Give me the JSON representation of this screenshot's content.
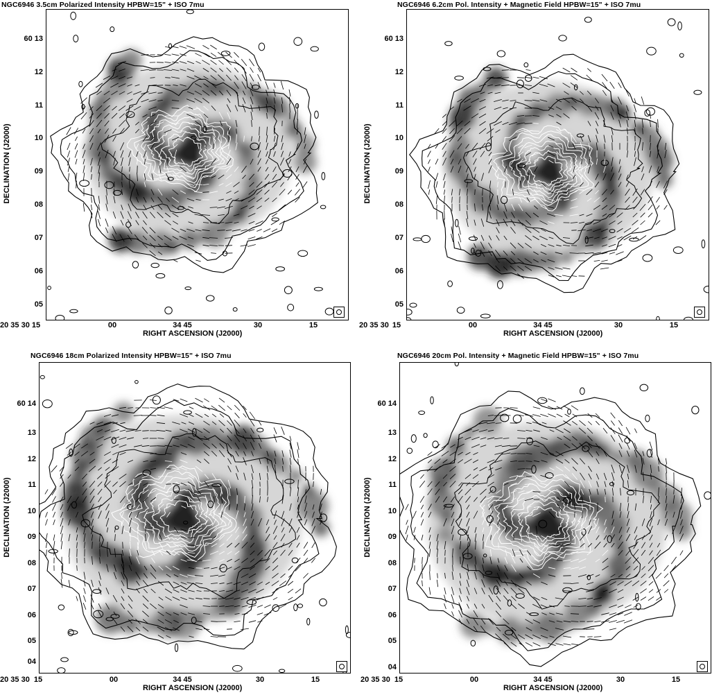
{
  "panels": [
    {
      "title": "NGC6946   3.5cm   Polarized Intensity   HPBW=15\"   +   ISO 7mu",
      "ylabel": "DECLINATION (J2000)",
      "xlabel": "RIGHT ASCENSION (J2000)",
      "dec_ticks": [
        "60 13",
        "12",
        "11",
        "10",
        "09",
        "08",
        "07",
        "06",
        "05"
      ],
      "ra_ticks": [
        "20 35 30",
        "15",
        "00",
        "34 45",
        "30",
        "15"
      ]
    },
    {
      "title": "NGC6946   6.2cm   Pol. Intensity + Magnetic Field   HPBW=15\"   +   ISO 7mu",
      "ylabel": "DECLINATION (J2000)",
      "xlabel": "RIGHT ASCENSION (J2000)",
      "dec_ticks": [
        "60 13",
        "12",
        "11",
        "10",
        "09",
        "08",
        "07",
        "06",
        "05"
      ],
      "ra_ticks": [
        "20 35 30",
        "15",
        "00",
        "34 45",
        "30",
        "15"
      ]
    },
    {
      "title": "NGC6946   18cm   Polarized Intensity   HPBW=15\"   +   ISO 7mu",
      "ylabel": "DECLINATION (J2000)",
      "xlabel": "RIGHT ASCENSION (J2000)",
      "dec_ticks": [
        "60 14",
        "13",
        "12",
        "11",
        "10",
        "09",
        "08",
        "07",
        "06",
        "05",
        "04"
      ],
      "ra_ticks": [
        "20 35 30",
        "15",
        "00",
        "34 45",
        "30",
        "15"
      ]
    },
    {
      "title": "NGC6946   20cm   Pol. Intensity + Magnetic Field   HPBW=15\"   +   ISO 7mu",
      "ylabel": "DECLINATION (J2000)",
      "xlabel": "RIGHT ASCENSION (J2000)",
      "dec_ticks": [
        "60 14",
        "13",
        "12",
        "11",
        "10",
        "09",
        "08",
        "07",
        "06",
        "05",
        "04"
      ],
      "ra_ticks": [
        "20 35 30",
        "15",
        "00",
        "34 45",
        "30",
        "15"
      ]
    }
  ]
}
